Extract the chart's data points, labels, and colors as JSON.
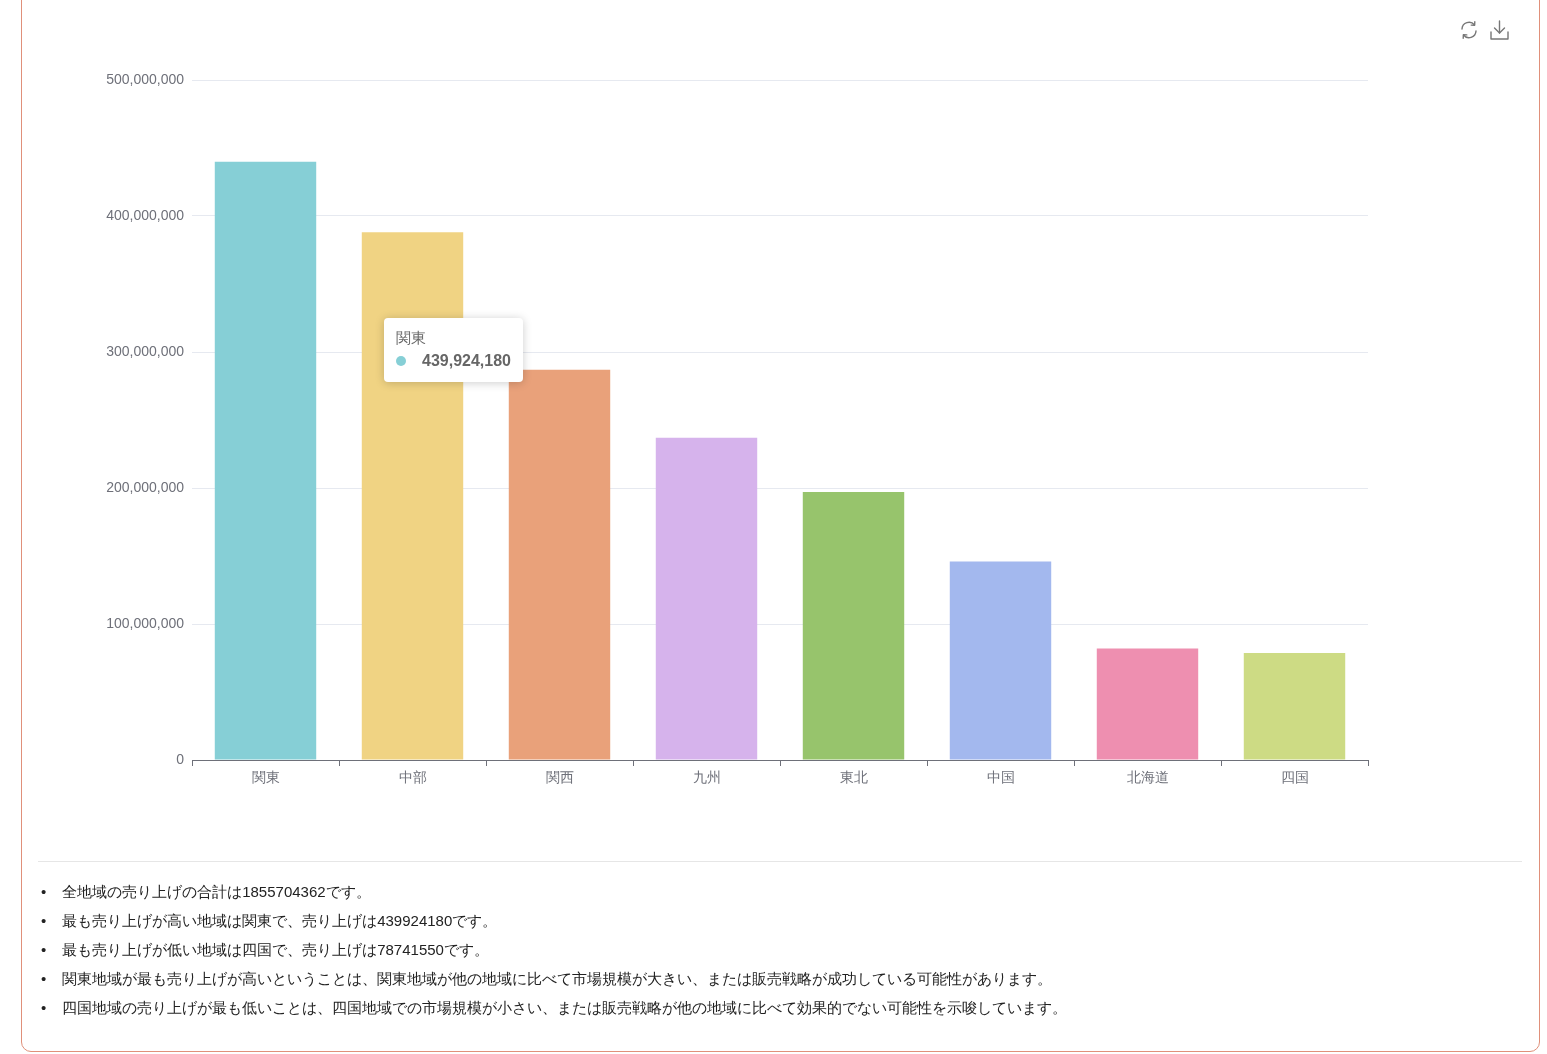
{
  "chart_data": {
    "type": "bar",
    "categories": [
      "関東",
      "中部",
      "関西",
      "九州",
      "東北",
      "中国",
      "北海道",
      "四国"
    ],
    "values": [
      439924180,
      388000000,
      287000000,
      237000000,
      197000000,
      146000000,
      82000000,
      78741550
    ],
    "colors": [
      "#86cfd6",
      "#f0d383",
      "#e9a17a",
      "#d6b3ec",
      "#97c46c",
      "#a3b8ee",
      "#ee8fb0",
      "#cddb84"
    ],
    "ylim": [
      0,
      500000000
    ],
    "yticks": [
      0,
      {
        "value": 100000000,
        "label": "100,000,000"
      },
      {
        "value": 200000000,
        "label": "200,000,000"
      },
      {
        "value": 300000000,
        "label": "300,000,000"
      },
      {
        "value": 400000000,
        "label": "400,000,000"
      },
      {
        "value": 500000000,
        "label": "500,000,000"
      }
    ],
    "grid": "y",
    "annotations": [
      "関東",
      "439,924,180",
      "• 全地域の売り上げの合計は1855704362です。",
      "• 最も売り上げが高い地域は関東で、売り上げは439924180です。",
      "• 最も売り上げが低い地域は四国で、売り上げは78741550です。",
      "• 関東地域が最も売り上げが高いということは、関東地域が他の地域に比べて市場規模が大きい、または販売戦略が成功している可能性があります。",
      "• 四国地域の売り上げが最も低いことは、四国地域での市場規模が小さい、または販売戦略が他の地域に比べて効果的でない可能性を示唆しています。"
    ]
  }
}
